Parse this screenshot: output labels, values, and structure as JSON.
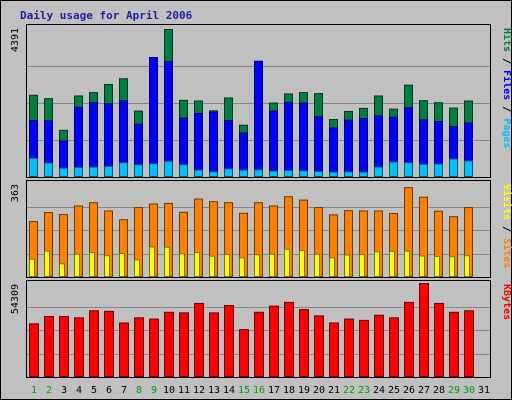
{
  "chart_data": {
    "type": "bar",
    "title": "Daily usage for April 2006",
    "categories": [
      "1",
      "2",
      "3",
      "4",
      "5",
      "6",
      "7",
      "8",
      "9",
      "10",
      "11",
      "12",
      "13",
      "14",
      "15",
      "16",
      "17",
      "18",
      "19",
      "20",
      "21",
      "22",
      "23",
      "24",
      "25",
      "26",
      "27",
      "28",
      "29",
      "30",
      "31"
    ],
    "weekend_days": [
      "1",
      "2",
      "8",
      "9",
      "15",
      "16",
      "22",
      "23",
      "29",
      "30"
    ],
    "panels": [
      {
        "id": "top",
        "max_label": "4391",
        "ylim": [
          0,
          4391
        ],
        "legend": [
          {
            "text": "Hits",
            "color": "#008040"
          },
          {
            "text": "Files",
            "color": "#0000ff"
          },
          {
            "text": "Pages",
            "color": "#00c0ff"
          }
        ],
        "separator": " / ",
        "series": [
          {
            "name": "Hits",
            "color": "#008040",
            "values": [
              2440,
              2340,
              1400,
              2420,
              2520,
              2760,
              2930,
              1970,
              3280,
              4391,
              2290,
              2270,
              1980,
              2360,
              1550,
              2750,
              2210,
              2480,
              2520,
              2490,
              1720,
              1960,
              2050,
              2420,
              2030,
              2740,
              2280,
              2220,
              2060,
              2270,
              null
            ]
          },
          {
            "name": "Files",
            "color": "#0000ff",
            "values": [
              1690,
              1680,
              1080,
              2080,
              2220,
              2190,
              2280,
              1580,
              3560,
              3440,
              1760,
              1900,
              1940,
              1690,
              1320,
              3450,
              1970,
              2230,
              2210,
              1800,
              1470,
              1700,
              1750,
              1830,
              1790,
              2070,
              1710,
              1660,
              1510,
              1620,
              null
            ]
          },
          {
            "name": "Pages",
            "color": "#00c0ff",
            "values": [
              570,
              430,
              280,
              300,
              310,
              330,
              440,
              380,
              410,
              480,
              380,
              220,
              170,
              260,
              220,
              230,
              190,
              210,
              200,
              180,
              160,
              170,
              160,
              310,
              460,
              440,
              390,
              400,
              550,
              490,
              null
            ]
          }
        ]
      },
      {
        "id": "middle",
        "max_label": "363",
        "ylim": [
          0,
          363
        ],
        "legend": [
          {
            "text": "Visits",
            "color": "#ffff00"
          },
          {
            "text": "Sites",
            "color": "#ff8000"
          }
        ],
        "separator": " / ",
        "series": [
          {
            "name": "Visits",
            "color": "#ff8000",
            "values": [
              216,
              251,
              243,
              276,
              289,
              257,
              223,
              270,
              284,
              286,
              252,
              303,
              293,
              289,
              248,
              289,
              276,
              312,
              299,
              270,
              242,
              258,
              257,
              257,
              247,
              347,
              310,
              256,
              235,
              270,
              null
            ]
          },
          {
            "name": "Sites",
            "color": "#ffff00",
            "values": [
              71,
              102,
              53,
              90,
              96,
              84,
              93,
              68,
              118,
              117,
              91,
              96,
              82,
              89,
              76,
              88,
              90,
              109,
              104,
              90,
              76,
              87,
              89,
              99,
              101,
              102,
              83,
              81,
              80,
              84,
              null
            ]
          }
        ]
      },
      {
        "id": "bottom",
        "max_label": "54309",
        "ylim": [
          0,
          54309
        ],
        "legend": [
          {
            "text": "KBytes",
            "color": "#ff0000"
          }
        ],
        "separator": "",
        "series": [
          {
            "name": "KBytes",
            "color": "#ff0000",
            "values": [
              31010,
              35250,
              35250,
              34480,
              38570,
              38220,
              31510,
              34480,
              33770,
              37680,
              37340,
              42800,
              37340,
              41580,
              27670,
              37680,
              41250,
              43420,
              39220,
              35590,
              31510,
              33770,
              33000,
              35970,
              34480,
              43420,
              54309,
              42800,
              37680,
              38570,
              null
            ]
          }
        ]
      }
    ],
    "colors": {
      "background": "#c0c0c0",
      "title": "#1f1fa0",
      "weekday_label": "#000000",
      "weekend_label": "#00a000",
      "grid": "#000000"
    },
    "grid": true
  }
}
